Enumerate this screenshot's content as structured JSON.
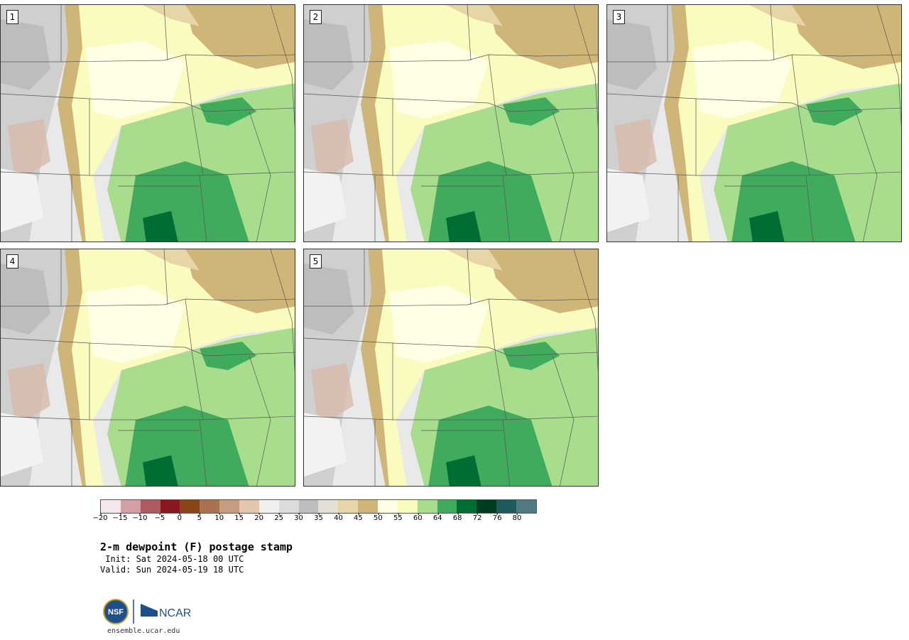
{
  "panels": [
    {
      "label": "1"
    },
    {
      "label": "2"
    },
    {
      "label": "3"
    },
    {
      "label": "4"
    },
    {
      "label": "5"
    }
  ],
  "colorbar": {
    "colors": [
      "#f5e6ea",
      "#d39ea6",
      "#ad5a60",
      "#8a1620",
      "#8a4516",
      "#ab7251",
      "#c59c7d",
      "#e3c6b0",
      "#f0f0f0",
      "#dcdcdc",
      "#bdbdbd",
      "#e3e1d3",
      "#e6d5a6",
      "#cfb577",
      "#ffffe6",
      "#f9fcbe",
      "#a9dd8e",
      "#41ab5d",
      "#006d35",
      "#003d1f",
      "#1f5a5c",
      "#4f7a82"
    ],
    "ticks": [
      "−20",
      "−15",
      "−10",
      "−5",
      "0",
      "5",
      "10",
      "15",
      "20",
      "25",
      "30",
      "35",
      "40",
      "45",
      "50",
      "55",
      "60",
      "64",
      "68",
      "72",
      "76",
      "80"
    ]
  },
  "title": "2-m dewpoint (F) postage stamp",
  "init": " Init: Sat 2024-05-18 00 UTC",
  "valid": "Valid: Sun 2024-05-19 18 UTC",
  "logos": {
    "nsf": "NSF",
    "ncar": "NCAR"
  },
  "credit": "ensemble.ucar.edu"
}
